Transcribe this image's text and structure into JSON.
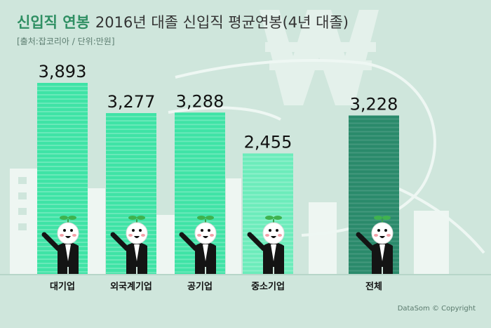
{
  "header": {
    "highlight": "신입직 연봉",
    "title": "2016년 대졸 신입직 평균연봉(4년 대졸)",
    "source": "[출처:잡코리아 / 단위:만원]"
  },
  "credit": "DataSom © Copyright",
  "colors": {
    "bar_light": "#3fe3a6",
    "bar_lighter": "#6cecbb",
    "bar_total": "#2a8a6b",
    "background": "#cfe6dc"
  },
  "chart_data": {
    "type": "bar",
    "categories": [
      "대기업",
      "외국계기업",
      "공기업",
      "중소기업",
      "전체"
    ],
    "values": [
      3893,
      3277,
      3288,
      2455,
      3228
    ],
    "value_labels": [
      "3,893",
      "3,277",
      "3,288",
      "2,455",
      "3,228"
    ],
    "title": "2016년 대졸 신입직 평균연봉(4년 대졸)",
    "xlabel": "",
    "ylabel": "",
    "unit": "만원",
    "ylim": [
      0,
      4000
    ],
    "legend": "none",
    "grid": false
  }
}
